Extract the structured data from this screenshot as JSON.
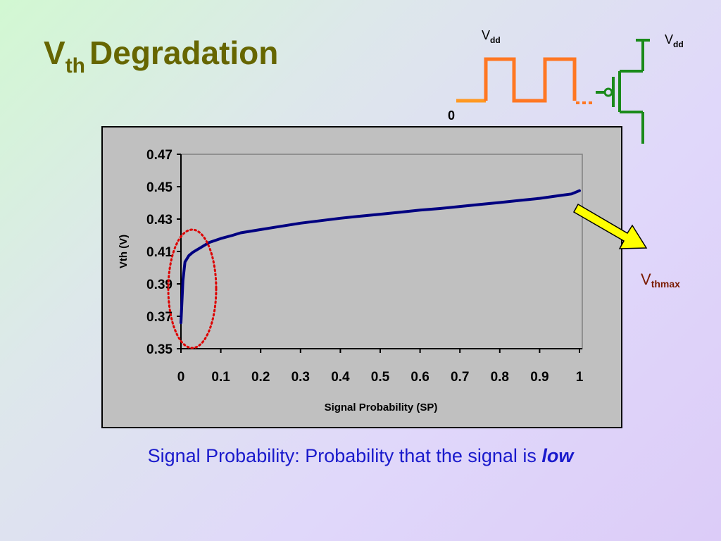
{
  "slide": {
    "title_main": "V",
    "title_sub": "th",
    "title_rest": "Degradation",
    "caption_text": "Signal Probability: Probability that the signal is ",
    "caption_emph": "low"
  },
  "waveform": {
    "vdd_main": "V",
    "vdd_sub": "dd",
    "zero_label": "0",
    "color_high": "#ff7722",
    "color_low": "#ff9922"
  },
  "transistor": {
    "vdd_main": "V",
    "vdd_sub": "dd",
    "color": "#1a8a1a"
  },
  "annotation": {
    "vthmax_main": "V",
    "vthmax_sub": "thmax",
    "arrow_color": "#ffff00",
    "ellipse_color": "#dd0000"
  },
  "chart_data": {
    "type": "line",
    "title": "",
    "xlabel": "Signal Probability (SP)",
    "ylabel": "Vth (V)",
    "xlim": [
      0,
      1
    ],
    "ylim": [
      0.35,
      0.47
    ],
    "xticks": [
      0,
      0.1,
      0.2,
      0.3,
      0.4,
      0.5,
      0.6,
      0.7,
      0.8,
      0.9,
      1
    ],
    "xtick_labels": [
      "0",
      "0.1",
      "0.2",
      "0.3",
      "0.4",
      "0.5",
      "0.6",
      "0.7",
      "0.8",
      "0.9",
      "1"
    ],
    "yticks": [
      0.35,
      0.37,
      0.39,
      0.41,
      0.43,
      0.45,
      0.47
    ],
    "ytick_labels": [
      "0.35",
      "0.37",
      "0.39",
      "0.41",
      "0.43",
      "0.45",
      "0.47"
    ],
    "grid": false,
    "plot_background": "#c0c0c0",
    "series": [
      {
        "color": "#000080",
        "x": [
          0.0,
          0.005,
          0.01,
          0.02,
          0.03,
          0.04,
          0.05,
          0.07,
          0.1,
          0.13,
          0.15,
          0.2,
          0.25,
          0.3,
          0.35,
          0.4,
          0.45,
          0.5,
          0.55,
          0.6,
          0.65,
          0.7,
          0.75,
          0.8,
          0.85,
          0.9,
          0.95,
          0.98,
          1.0
        ],
        "y": [
          0.366,
          0.392,
          0.4035,
          0.4075,
          0.4095,
          0.411,
          0.4125,
          0.4155,
          0.418,
          0.42,
          0.4215,
          0.4235,
          0.4255,
          0.4275,
          0.429,
          0.4305,
          0.4318,
          0.433,
          0.4342,
          0.4355,
          0.4365,
          0.4378,
          0.439,
          0.4402,
          0.4415,
          0.4428,
          0.4445,
          0.4455,
          0.4475
        ]
      }
    ]
  }
}
